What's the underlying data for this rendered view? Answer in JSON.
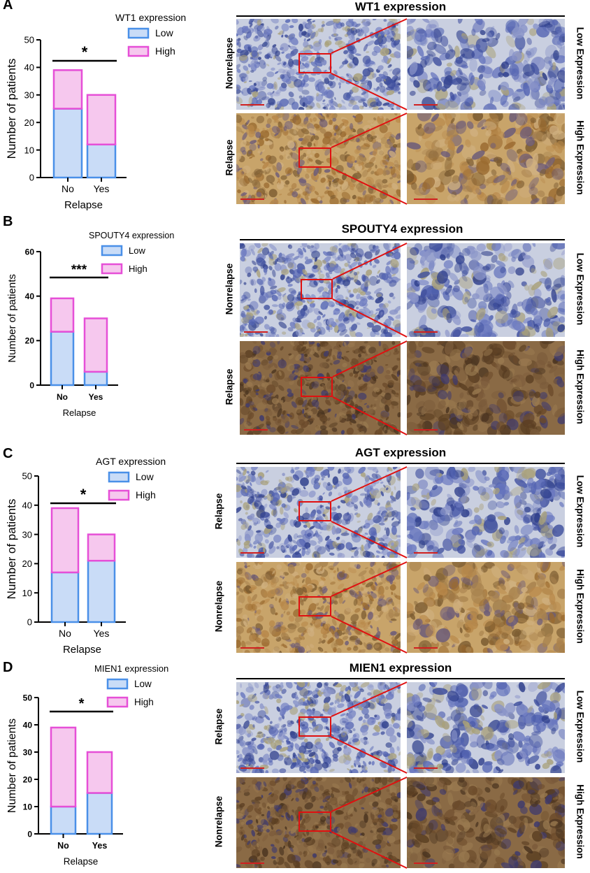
{
  "colors": {
    "low_fill": "#c9dcf7",
    "low_stroke": "#4a90e8",
    "high_fill": "#f6c8ee",
    "high_stroke": "#e64fd7"
  },
  "panels": [
    {
      "letter": "A",
      "chart_data": {
        "type": "bar",
        "stacked": true,
        "legend_title": "WT1 expression",
        "categories": [
          "No",
          "Yes"
        ],
        "series": [
          {
            "name": "Low",
            "values": [
              25,
              12
            ]
          },
          {
            "name": "High",
            "values": [
              14,
              18
            ]
          }
        ],
        "xlabel": "Relapse",
        "ylabel": "Number of patients",
        "ylim": [
          0,
          50
        ],
        "yticks": [
          "0",
          "10",
          "20",
          "30",
          "40",
          "50"
        ],
        "significance": "*",
        "bold_ticks": false,
        "legend_position": "top-right"
      },
      "micrograph": {
        "title": "WT1 expression",
        "top_row_label": "Nonrelapse",
        "bottom_row_label": "Relapse",
        "top_zoom_label": "Low Expression",
        "bottom_zoom_label": "High Expression",
        "top_stain": "blue",
        "bottom_stain": "brown"
      }
    },
    {
      "letter": "B",
      "chart_data": {
        "type": "bar",
        "stacked": true,
        "legend_title": "SPOUTY4 expression",
        "categories": [
          "No",
          "Yes"
        ],
        "series": [
          {
            "name": "Low",
            "values": [
              24,
              6
            ]
          },
          {
            "name": "High",
            "values": [
              15,
              24
            ]
          }
        ],
        "xlabel": "Relapse",
        "ylabel": "Number of patients",
        "ylim": [
          0,
          60
        ],
        "yticks": [
          "0",
          "20",
          "40",
          "60"
        ],
        "significance": "***",
        "bold_ticks": true,
        "legend_position": "top-right"
      },
      "micrograph": {
        "title": "SPOUTY4 expression",
        "top_row_label": "Nonrelapse",
        "bottom_row_label": "Relapse",
        "top_zoom_label": "Low Expression",
        "bottom_zoom_label": "High Expression",
        "top_stain": "blue",
        "bottom_stain": "darkbrown"
      }
    },
    {
      "letter": "C",
      "chart_data": {
        "type": "bar",
        "stacked": true,
        "legend_title": "AGT expression",
        "categories": [
          "No",
          "Yes"
        ],
        "series": [
          {
            "name": "Low",
            "values": [
              17,
              21
            ]
          },
          {
            "name": "High",
            "values": [
              22,
              9
            ]
          }
        ],
        "xlabel": "Relapse",
        "ylabel": "Number of patients",
        "ylim": [
          0,
          50
        ],
        "yticks": [
          "0",
          "10",
          "20",
          "30",
          "40",
          "50"
        ],
        "significance": "*",
        "bold_ticks": false,
        "legend_position": "top-right"
      },
      "micrograph": {
        "title": "AGT expression",
        "top_row_label": "Relapse",
        "bottom_row_label": "Nonrelapse",
        "top_zoom_label": "Low Expression",
        "bottom_zoom_label": "High Expression",
        "top_stain": "blue",
        "bottom_stain": "brown"
      }
    },
    {
      "letter": "D",
      "chart_data": {
        "type": "bar",
        "stacked": true,
        "legend_title": "MIEN1 expression",
        "categories": [
          "No",
          "Yes"
        ],
        "series": [
          {
            "name": "Low",
            "values": [
              10,
              15
            ]
          },
          {
            "name": "High",
            "values": [
              29,
              15
            ]
          }
        ],
        "xlabel": "Relapse",
        "ylabel": "Number of patients",
        "ylim": [
          0,
          50
        ],
        "yticks": [
          "0",
          "10",
          "20",
          "30",
          "40",
          "50"
        ],
        "significance": "*",
        "bold_ticks": true,
        "legend_position": "top-right"
      },
      "micrograph": {
        "title": "MIEN1 expression",
        "top_row_label": "Relapse",
        "bottom_row_label": "Nonrelapse",
        "top_zoom_label": "Low Expression",
        "bottom_zoom_label": "High Expression",
        "top_stain": "blue",
        "bottom_stain": "darkbrown"
      }
    }
  ]
}
